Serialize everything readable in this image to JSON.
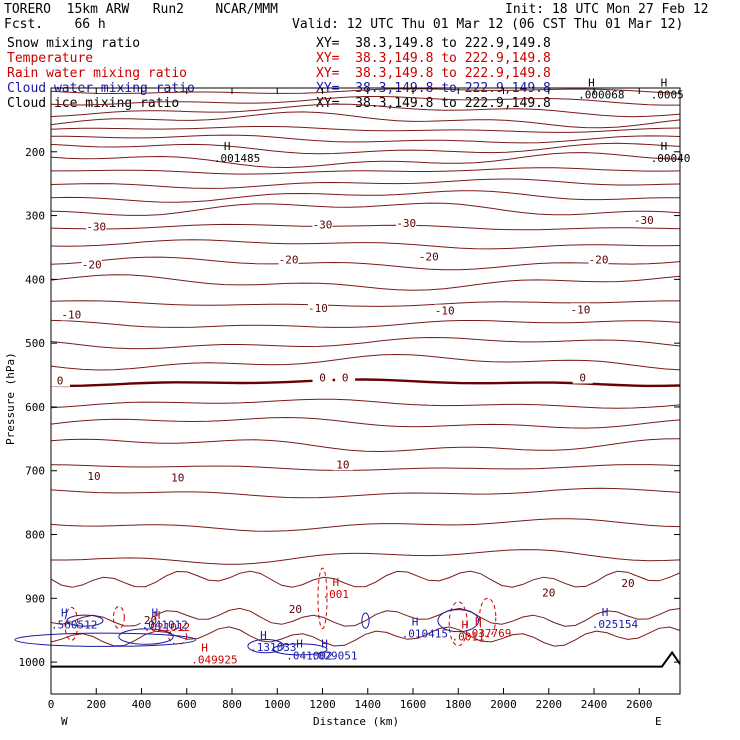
{
  "header": {
    "left_line1": "TORERO  15km ARW   Run2    NCAR/MMM",
    "left_line2": "Fcst.    66 h",
    "init": "Init: 18 UTC Mon 27 Feb 12",
    "valid": "Valid: 12 UTC Thu 01 Mar 12 (06 CST Thu 01 Mar 12)"
  },
  "legend": [
    {
      "name": "Snow mixing ratio",
      "color": "#000000",
      "xy": "XY=  38.3,149.8 to 222.9,149.8"
    },
    {
      "name": "Temperature",
      "color": "#cc0000",
      "xy": "XY=  38.3,149.8 to 222.9,149.8"
    },
    {
      "name": "Rain water mixing ratio",
      "color": "#cc0000",
      "xy": "XY=  38.3,149.8 to 222.9,149.8"
    },
    {
      "name": "Cloud water mixing ratio",
      "color": "#1a1aa8",
      "xy": "XY=  38.3,149.8 to 222.9,149.8"
    },
    {
      "name": "Cloud ice mixing ratio",
      "color": "#000000",
      "xy": "XY=  38.3,149.8 to 222.9,149.8"
    }
  ],
  "chart_data": {
    "type": "contour-cross-section",
    "xlabel": "Distance (km)",
    "ylabel": "Pressure (hPa)",
    "xlim": [
      0,
      2780
    ],
    "ylim": [
      1050,
      100
    ],
    "x_ticks": [
      0,
      200,
      400,
      600,
      800,
      1000,
      1200,
      1400,
      1600,
      1800,
      2000,
      2200,
      2400,
      2600
    ],
    "y_ticks": [
      200,
      300,
      400,
      500,
      600,
      700,
      800,
      900,
      1000
    ],
    "left_end_label": "W",
    "right_end_label": "E",
    "temperature_labels": [
      {
        "text": "-30",
        "x": 200,
        "p": 320
      },
      {
        "text": "-30",
        "x": 1200,
        "p": 317
      },
      {
        "text": "-30",
        "x": 1570,
        "p": 315
      },
      {
        "text": "-30",
        "x": 2620,
        "p": 310
      },
      {
        "text": "-20",
        "x": 180,
        "p": 380
      },
      {
        "text": "-20",
        "x": 1050,
        "p": 372
      },
      {
        "text": "-20",
        "x": 1670,
        "p": 367
      },
      {
        "text": "-20",
        "x": 2420,
        "p": 372
      },
      {
        "text": "-10",
        "x": 90,
        "p": 458
      },
      {
        "text": "-10",
        "x": 1180,
        "p": 448
      },
      {
        "text": "-10",
        "x": 1740,
        "p": 452
      },
      {
        "text": "-10",
        "x": 2340,
        "p": 450
      },
      {
        "text": "0",
        "x": 40,
        "p": 562
      },
      {
        "text": "0",
        "x": 1200,
        "p": 557
      },
      {
        "text": "0",
        "x": 1300,
        "p": 557
      },
      {
        "text": "0",
        "x": 2350,
        "p": 557
      },
      {
        "text": "10",
        "x": 190,
        "p": 711
      },
      {
        "text": "10",
        "x": 560,
        "p": 714
      },
      {
        "text": "10",
        "x": 1290,
        "p": 693
      },
      {
        "text": "20",
        "x": 440,
        "p": 937
      },
      {
        "text": "20",
        "x": 1080,
        "p": 920
      },
      {
        "text": "20",
        "x": 2200,
        "p": 894
      },
      {
        "text": "20",
        "x": 2550,
        "p": 879
      }
    ],
    "extrema_labels": [
      {
        "text": ".001485",
        "x": 720,
        "p": 210,
        "color": "#000000"
      },
      {
        "text": ".00040",
        "x": 2650,
        "p": 210,
        "color": "#000000"
      },
      {
        "text": ".000068",
        "x": 2330,
        "p": 110,
        "color": "#000000"
      },
      {
        "text": ".0005",
        "x": 2650,
        "p": 110,
        "color": "#000000"
      },
      {
        "text": ".001",
        "x": 1200,
        "p": 893,
        "color": "#cc0000"
      },
      {
        "text": ".0011",
        "x": 1770,
        "p": 960,
        "color": "#cc0000"
      },
      {
        "text": ".037769",
        "x": 1830,
        "p": 954,
        "color": "#cc0000"
      },
      {
        "text": ".021012",
        "x": 410,
        "p": 945,
        "color": "#cc0000"
      },
      {
        "text": ".560512",
        "x": 0,
        "p": 941,
        "color": "#1a1aa8"
      },
      {
        "text": ".041012",
        "x": 400,
        "p": 941,
        "color": "#1a1aa8"
      },
      {
        "text": ".131033",
        "x": 880,
        "p": 976,
        "color": "#1a1aa8"
      },
      {
        "text": ".041002",
        "x": 1040,
        "p": 990,
        "color": "#1a1aa8"
      },
      {
        "text": ".029051",
        "x": 1150,
        "p": 990,
        "color": "#1a1aa8"
      },
      {
        "text": ".010415",
        "x": 1550,
        "p": 955,
        "color": "#1a1aa8"
      },
      {
        "text": ".025154",
        "x": 2390,
        "p": 940,
        "color": "#1a1aa8"
      },
      {
        "text": ".049925",
        "x": 620,
        "p": 996,
        "color": "#cc0000"
      }
    ]
  }
}
